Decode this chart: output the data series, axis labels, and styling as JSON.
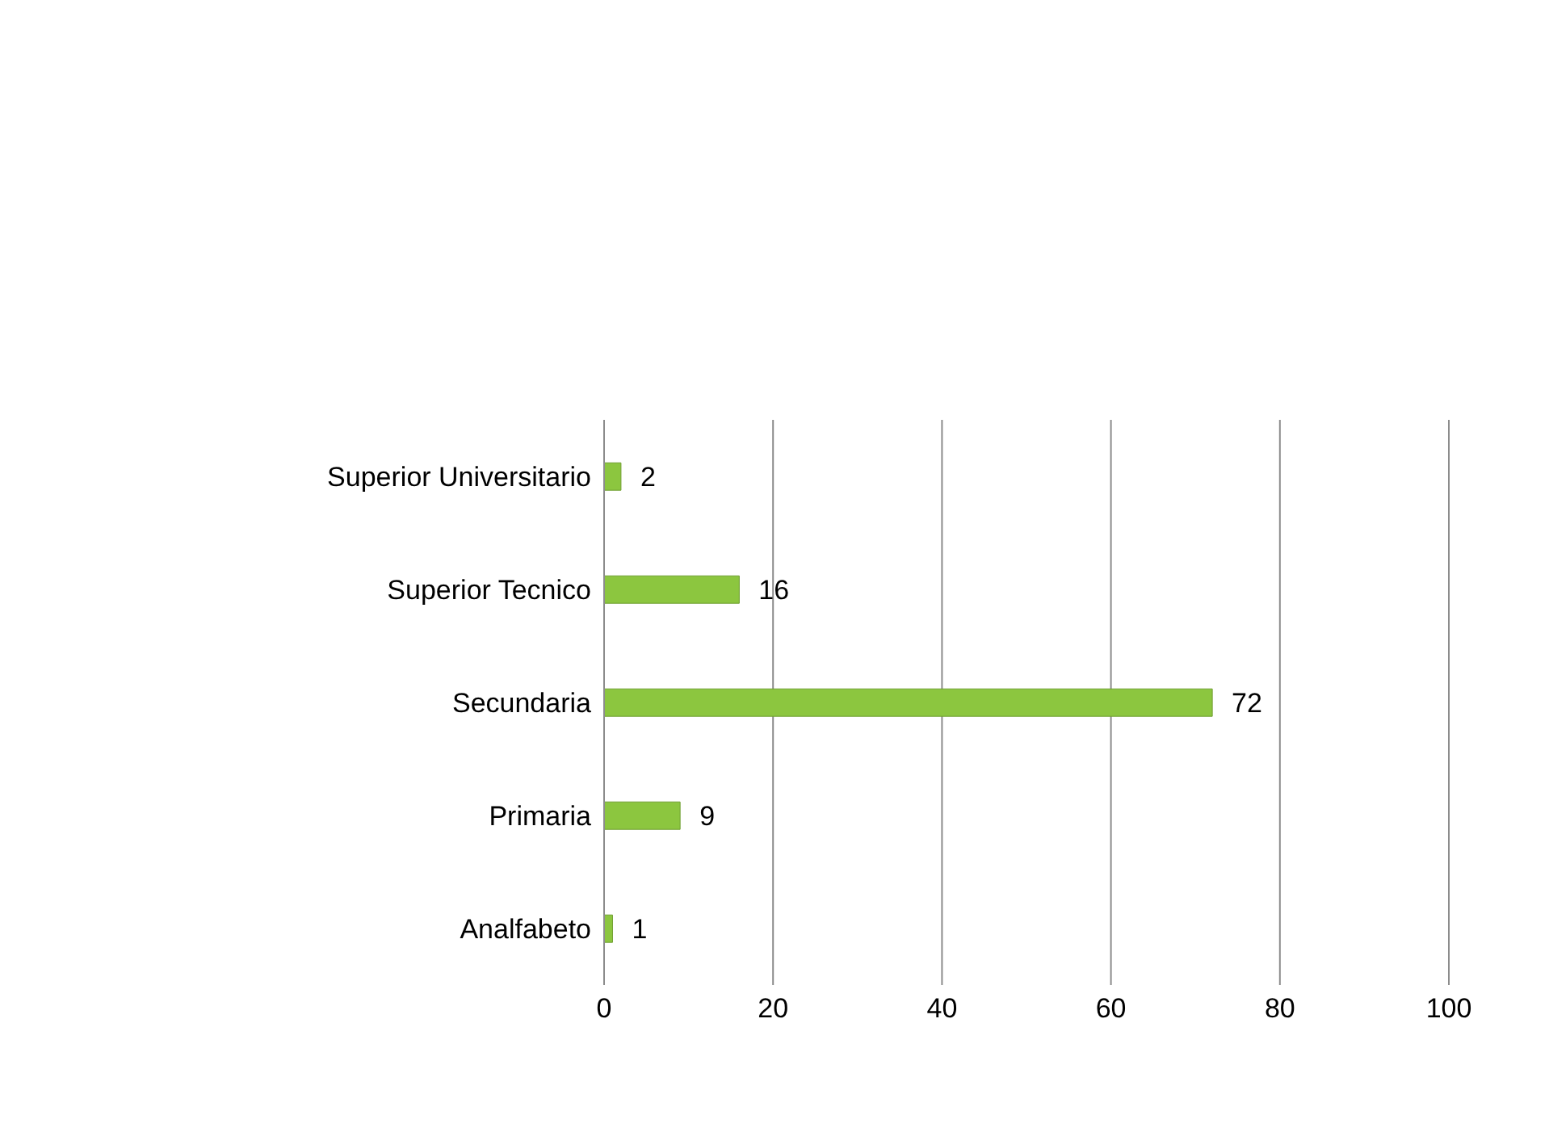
{
  "chart_data": {
    "type": "bar",
    "orientation": "horizontal",
    "categories": [
      "Superior Universitario",
      "Superior Tecnico",
      "Secundaria",
      "Primaria",
      "Analfabeto"
    ],
    "values": [
      2,
      16,
      72,
      9,
      1
    ],
    "color": "#8cc63f",
    "xlim": [
      0,
      100
    ],
    "xticks": [
      0,
      20,
      40,
      60,
      80,
      100
    ],
    "grid": "x",
    "data_labels": true
  }
}
